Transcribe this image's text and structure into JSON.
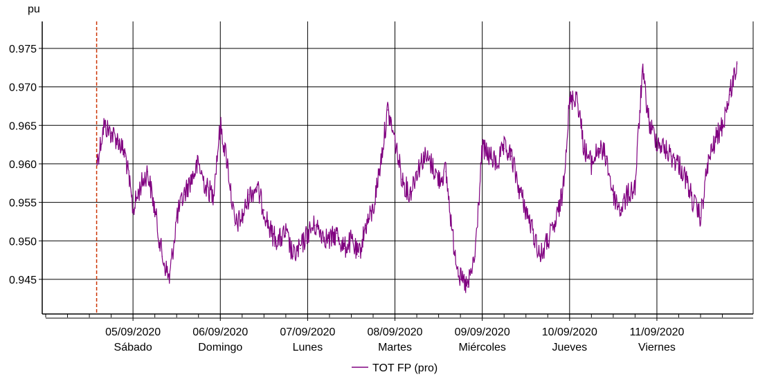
{
  "chart_data": {
    "type": "line",
    "ylabel": "pu",
    "ylim": [
      0.9405,
      0.9785
    ],
    "xlim": [
      "2020-09-04 00:00",
      "2020-09-11 23:59"
    ],
    "grid": true,
    "legend_position": "bottom-center",
    "colors": {
      "series": "#800080",
      "marker": "#cc3300",
      "grid": "#000000",
      "axis": "#000000"
    },
    "y_ticks": [
      "0.945",
      "0.950",
      "0.955",
      "0.960",
      "0.965",
      "0.970",
      "0.975"
    ],
    "x_ticks": [
      {
        "date": "05/09/2020",
        "day": "Sábado"
      },
      {
        "date": "06/09/2020",
        "day": "Domingo"
      },
      {
        "date": "07/09/2020",
        "day": "Lunes"
      },
      {
        "date": "08/09/2020",
        "day": "Martes"
      },
      {
        "date": "09/09/2020",
        "day": "Miércoles"
      },
      {
        "date": "10/09/2020",
        "day": "Jueves"
      },
      {
        "date": "11/09/2020",
        "day": "Viernes"
      }
    ],
    "marker_line_x": "2020-09-04 14:00",
    "series": [
      {
        "name": "TOT FP (pro)",
        "x": [
          "2020-09-04 14:00",
          "2020-09-04 16:00",
          "2020-09-04 18:00",
          "2020-09-04 20:00",
          "2020-09-04 22:00",
          "2020-09-05 00:00",
          "2020-09-05 02:00",
          "2020-09-05 04:00",
          "2020-09-05 06:00",
          "2020-09-05 08:00",
          "2020-09-05 10:00",
          "2020-09-05 12:00",
          "2020-09-05 14:00",
          "2020-09-05 16:00",
          "2020-09-05 18:00",
          "2020-09-05 20:00",
          "2020-09-05 22:00",
          "2020-09-06 00:00",
          "2020-09-06 02:00",
          "2020-09-06 04:00",
          "2020-09-06 06:00",
          "2020-09-06 08:00",
          "2020-09-06 10:00",
          "2020-09-06 12:00",
          "2020-09-06 14:00",
          "2020-09-06 16:00",
          "2020-09-06 18:00",
          "2020-09-06 20:00",
          "2020-09-06 22:00",
          "2020-09-07 00:00",
          "2020-09-07 02:00",
          "2020-09-07 04:00",
          "2020-09-07 06:00",
          "2020-09-07 08:00",
          "2020-09-07 10:00",
          "2020-09-07 12:00",
          "2020-09-07 14:00",
          "2020-09-07 16:00",
          "2020-09-07 18:00",
          "2020-09-07 20:00",
          "2020-09-07 22:00",
          "2020-09-08 00:00",
          "2020-09-08 02:00",
          "2020-09-08 04:00",
          "2020-09-08 06:00",
          "2020-09-08 08:00",
          "2020-09-08 10:00",
          "2020-09-08 12:00",
          "2020-09-08 14:00",
          "2020-09-08 16:00",
          "2020-09-08 18:00",
          "2020-09-08 20:00",
          "2020-09-08 22:00",
          "2020-09-09 00:00",
          "2020-09-09 02:00",
          "2020-09-09 04:00",
          "2020-09-09 06:00",
          "2020-09-09 08:00",
          "2020-09-09 10:00",
          "2020-09-09 12:00",
          "2020-09-09 14:00",
          "2020-09-09 16:00",
          "2020-09-09 18:00",
          "2020-09-09 20:00",
          "2020-09-09 22:00",
          "2020-09-10 00:00",
          "2020-09-10 02:00",
          "2020-09-10 04:00",
          "2020-09-10 06:00",
          "2020-09-10 08:00",
          "2020-09-10 10:00",
          "2020-09-10 12:00",
          "2020-09-10 14:00",
          "2020-09-10 16:00",
          "2020-09-10 18:00",
          "2020-09-10 20:00",
          "2020-09-10 22:00",
          "2020-09-11 00:00",
          "2020-09-11 02:00",
          "2020-09-11 04:00",
          "2020-09-11 06:00",
          "2020-09-11 08:00",
          "2020-09-11 10:00",
          "2020-09-11 12:00",
          "2020-09-11 14:00",
          "2020-09-11 16:00",
          "2020-09-11 18:00",
          "2020-09-11 20:00",
          "2020-09-11 22:00"
        ],
        "values": [
          0.96,
          0.965,
          0.964,
          0.963,
          0.961,
          0.954,
          0.957,
          0.959,
          0.954,
          0.948,
          0.945,
          0.953,
          0.956,
          0.958,
          0.96,
          0.957,
          0.956,
          0.965,
          0.96,
          0.952,
          0.953,
          0.956,
          0.957,
          0.954,
          0.951,
          0.95,
          0.951,
          0.948,
          0.949,
          0.951,
          0.952,
          0.951,
          0.95,
          0.951,
          0.949,
          0.95,
          0.948,
          0.952,
          0.954,
          0.96,
          0.967,
          0.963,
          0.958,
          0.956,
          0.959,
          0.961,
          0.96,
          0.958,
          0.959,
          0.95,
          0.945,
          0.944,
          0.948,
          0.962,
          0.961,
          0.96,
          0.962,
          0.961,
          0.957,
          0.954,
          0.951,
          0.948,
          0.95,
          0.952,
          0.956,
          0.968,
          0.969,
          0.962,
          0.96,
          0.962,
          0.961,
          0.956,
          0.954,
          0.956,
          0.957,
          0.972,
          0.965,
          0.963,
          0.962,
          0.961,
          0.96,
          0.958,
          0.955,
          0.953,
          0.96,
          0.963,
          0.965,
          0.969,
          0.973
        ]
      }
    ]
  }
}
